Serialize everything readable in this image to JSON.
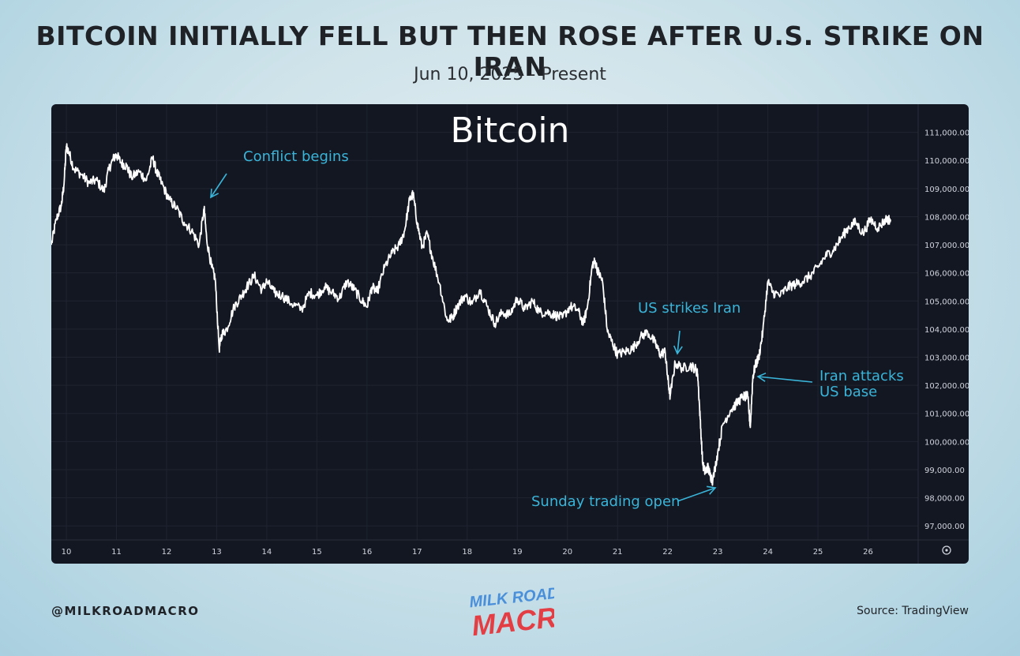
{
  "header": {
    "title": "BITCOIN INITIALLY FELL BUT THEN ROSE AFTER U.S. STRIKE ON IRAN",
    "subtitle": "Jun 10, 2025 - Present"
  },
  "footer": {
    "handle": "@MILKROADMACRO",
    "source": "Source: TradingView",
    "logo_line1": "MILK ROAD",
    "logo_line2": "MACRO"
  },
  "colors": {
    "background": "#131722",
    "line": "#ffffff",
    "annotation": "#3ab4d8",
    "grid": "#1f2430",
    "axis_text": "#d1d4dc"
  },
  "chart_data": {
    "type": "line",
    "title": "Bitcoin",
    "xlabel": "",
    "ylabel": "",
    "x_ticks": [
      "10",
      "11",
      "12",
      "13",
      "14",
      "15",
      "16",
      "17",
      "18",
      "19",
      "20",
      "21",
      "22",
      "23",
      "24",
      "25",
      "26"
    ],
    "y_ticks": [
      "111,000.00",
      "110,000.00",
      "109,000.00",
      "108,000.00",
      "107,000.00",
      "106,000.00",
      "105,000.00",
      "104,000.00",
      "103,000.00",
      "102,000.00",
      "101,000.00",
      "100,000.00",
      "99,000.00",
      "98,000.00",
      "97,000.00"
    ],
    "ylim": [
      96500,
      112000
    ],
    "xlim": [
      9.7,
      27.0
    ],
    "grid": true,
    "series": [
      {
        "x": [
          9.7,
          9.8,
          9.9,
          9.95,
          10.0,
          10.05,
          10.15,
          10.3,
          10.45,
          10.6,
          10.75,
          10.85,
          10.95,
          11.0,
          11.1,
          11.2,
          11.3,
          11.45,
          11.6,
          11.72,
          11.8,
          11.9,
          12.05,
          12.2,
          12.35,
          12.5,
          12.65,
          12.75,
          12.8,
          12.9,
          12.97,
          13.05,
          13.1,
          13.2,
          13.35,
          13.5,
          13.6,
          13.75,
          13.9,
          14.0,
          14.15,
          14.3,
          14.5,
          14.7,
          14.85,
          15.0,
          15.15,
          15.3,
          15.45,
          15.6,
          15.75,
          15.9,
          16.0,
          16.1,
          16.2,
          16.35,
          16.5,
          16.65,
          16.75,
          16.85,
          16.92,
          17.0,
          17.1,
          17.2,
          17.3,
          17.45,
          17.6,
          17.7,
          17.8,
          17.95,
          18.1,
          18.25,
          18.4,
          18.55,
          18.7,
          18.85,
          19.0,
          19.15,
          19.3,
          19.45,
          19.6,
          19.75,
          19.9,
          20.05,
          20.2,
          20.32,
          20.4,
          20.5,
          20.55,
          20.62,
          20.7,
          20.8,
          20.9,
          21.0,
          21.15,
          21.3,
          21.45,
          21.6,
          21.75,
          21.85,
          21.95,
          22.0,
          22.05,
          22.15,
          22.3,
          22.45,
          22.55,
          22.6,
          22.65,
          22.7,
          22.75,
          22.8,
          22.85,
          22.9,
          23.0,
          23.1,
          23.25,
          23.4,
          23.5,
          23.6,
          23.65,
          23.7,
          23.75,
          23.82,
          23.9,
          24.0,
          24.1,
          24.25,
          24.4,
          24.55,
          24.7,
          24.85,
          25.0,
          25.15,
          25.3,
          25.45,
          25.6,
          25.75,
          25.9,
          26.05,
          26.2,
          26.35,
          26.45
        ],
        "values": [
          107000,
          107900,
          108400,
          109100,
          110500,
          110300,
          109700,
          109500,
          109200,
          109300,
          108900,
          109700,
          110100,
          110200,
          109900,
          109800,
          109400,
          109600,
          109300,
          110100,
          109600,
          109200,
          108600,
          108300,
          107800,
          107500,
          107000,
          108300,
          107200,
          106200,
          105800,
          103300,
          103800,
          104000,
          104800,
          105200,
          105500,
          105900,
          105400,
          105700,
          105300,
          105200,
          104900,
          104700,
          105300,
          105200,
          105500,
          105300,
          105100,
          105700,
          105400,
          105000,
          104800,
          105500,
          105300,
          106200,
          106700,
          107000,
          107500,
          108600,
          108800,
          107800,
          106900,
          107400,
          106600,
          105600,
          104300,
          104400,
          104800,
          105200,
          104900,
          105400,
          104800,
          104200,
          104600,
          104500,
          105100,
          104700,
          105000,
          104600,
          104600,
          104500,
          104400,
          104800,
          104700,
          104200,
          104800,
          106300,
          106400,
          106000,
          105700,
          103900,
          103500,
          103100,
          103200,
          103300,
          103700,
          103900,
          103500,
          103100,
          103200,
          102300,
          101600,
          102800,
          102600,
          102700,
          102600,
          102400,
          100800,
          99200,
          98900,
          99100,
          98800,
          98600,
          99600,
          100600,
          101100,
          101400,
          101600,
          101600,
          100500,
          102300,
          102700,
          103000,
          103900,
          105700,
          105300,
          105200,
          105500,
          105600,
          105700,
          105900,
          106200,
          106600,
          106800,
          107200,
          107600,
          107800,
          107400,
          107900,
          107600,
          107900,
          107900
        ]
      }
    ],
    "annotations": [
      {
        "text": "Conflict begins",
        "x": 12.78,
        "y": 108500
      },
      {
        "text": "US strikes Iran",
        "x": 22.1,
        "y": 102950
      },
      {
        "text": "Iran attacks\nUS base",
        "x": 23.72,
        "y": 102350
      },
      {
        "text": "Sunday trading open",
        "x": 22.85,
        "y": 98350
      }
    ]
  }
}
